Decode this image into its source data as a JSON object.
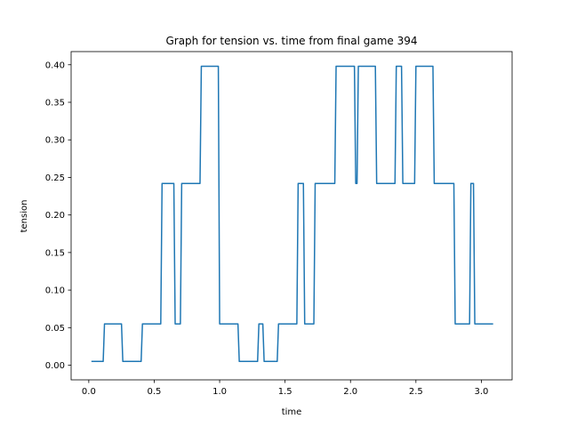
{
  "chart_data": {
    "type": "line",
    "title": "Graph for tension vs. time from final game 394",
    "xlabel": "time",
    "ylabel": "tension",
    "xlim": [
      -0.135,
      3.235
    ],
    "ylim": [
      -0.0195,
      0.4175
    ],
    "xticks": [
      0.0,
      0.5,
      1.0,
      1.5,
      2.0,
      2.5,
      3.0
    ],
    "xtick_labels": [
      "0.0",
      "0.5",
      "1.0",
      "1.5",
      "2.0",
      "2.5",
      "3.0"
    ],
    "yticks": [
      0.0,
      0.05,
      0.1,
      0.15,
      0.2,
      0.25,
      0.3,
      0.35,
      0.4
    ],
    "ytick_labels": [
      "0.00",
      "0.05",
      "0.10",
      "0.15",
      "0.20",
      "0.25",
      "0.30",
      "0.35",
      "0.40"
    ],
    "grid": false,
    "line_color": "#1f77b4",
    "series": [
      {
        "x": [
          0.02,
          0.11,
          0.12,
          0.25,
          0.26,
          0.4,
          0.41,
          0.55,
          0.56,
          0.65,
          0.66,
          0.7,
          0.71,
          0.85,
          0.86,
          0.99,
          1.0,
          1.14,
          1.15,
          1.29,
          1.3,
          1.33,
          1.34,
          1.44,
          1.45,
          1.59,
          1.6,
          1.64,
          1.65,
          1.72,
          1.73,
          1.88,
          1.89,
          2.03,
          2.04,
          2.05,
          2.06,
          2.19,
          2.2,
          2.34,
          2.35,
          2.39,
          2.4,
          2.49,
          2.5,
          2.63,
          2.64,
          2.79,
          2.8,
          2.91,
          2.92,
          2.94,
          2.95,
          3.09
        ],
        "y": [
          0.005,
          0.005,
          0.055,
          0.055,
          0.005,
          0.005,
          0.055,
          0.055,
          0.242,
          0.242,
          0.055,
          0.055,
          0.242,
          0.242,
          0.398,
          0.398,
          0.055,
          0.055,
          0.005,
          0.005,
          0.055,
          0.055,
          0.005,
          0.005,
          0.055,
          0.055,
          0.242,
          0.242,
          0.055,
          0.055,
          0.242,
          0.242,
          0.398,
          0.398,
          0.242,
          0.242,
          0.398,
          0.398,
          0.242,
          0.242,
          0.398,
          0.398,
          0.242,
          0.242,
          0.398,
          0.398,
          0.242,
          0.242,
          0.055,
          0.055,
          0.242,
          0.242,
          0.055,
          0.055
        ]
      }
    ]
  }
}
